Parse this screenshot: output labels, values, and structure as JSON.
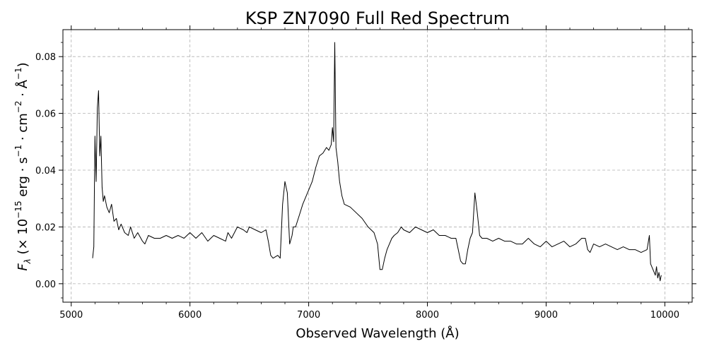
{
  "chart_data": {
    "type": "line",
    "title": "KSP ZN7090 Full Red Spectrum",
    "xlabel": "Observed Wavelength (Å)",
    "ylabel_parts": {
      "f": "F",
      "lam": "λ",
      "a": " (× 10",
      "e1": "−15",
      "b": " erg · s",
      "e2": "−1",
      "c": " · cm",
      "e3": "−2",
      "d": " · Å",
      "e4": "−1",
      "end": ")"
    },
    "xlim": [
      4930,
      10230
    ],
    "ylim": [
      -0.0065,
      0.0895
    ],
    "x_ticks": [
      5000,
      6000,
      7000,
      8000,
      9000,
      10000
    ],
    "x_tick_labels": [
      "5000",
      "6000",
      "7000",
      "8000",
      "9000",
      "10000"
    ],
    "y_ticks": [
      0.0,
      0.02,
      0.04,
      0.06,
      0.08
    ],
    "y_tick_labels": [
      "0.00",
      "0.02",
      "0.04",
      "0.06",
      "0.08"
    ],
    "x_minor_step": 200,
    "y_minor_step": 0.005,
    "grid": true,
    "series": [
      {
        "color": "#000000",
        "x": [
          5180,
          5190,
          5200,
          5210,
          5220,
          5230,
          5240,
          5250,
          5260,
          5270,
          5280,
          5300,
          5320,
          5340,
          5360,
          5380,
          5400,
          5420,
          5450,
          5480,
          5500,
          5530,
          5560,
          5600,
          5620,
          5650,
          5700,
          5750,
          5800,
          5850,
          5900,
          5950,
          6000,
          6050,
          6100,
          6150,
          6200,
          6250,
          6300,
          6320,
          6350,
          6400,
          6450,
          6480,
          6500,
          6550,
          6600,
          6640,
          6660,
          6680,
          6700,
          6740,
          6760,
          6780,
          6800,
          6820,
          6840,
          6860,
          6870,
          6890,
          6920,
          6950,
          7000,
          7030,
          7060,
          7090,
          7120,
          7150,
          7170,
          7190,
          7200,
          7210,
          7220,
          7230,
          7245,
          7260,
          7280,
          7300,
          7350,
          7400,
          7450,
          7500,
          7550,
          7580,
          7600,
          7620,
          7640,
          7660,
          7680,
          7700,
          7720,
          7750,
          7780,
          7800,
          7850,
          7900,
          7950,
          8000,
          8050,
          8100,
          8150,
          8200,
          8240,
          8260,
          8280,
          8300,
          8320,
          8340,
          8360,
          8380,
          8400,
          8420,
          8440,
          8460,
          8500,
          8550,
          8600,
          8650,
          8700,
          8750,
          8800,
          8850,
          8900,
          8950,
          9000,
          9050,
          9100,
          9150,
          9200,
          9250,
          9300,
          9330,
          9350,
          9370,
          9400,
          9450,
          9500,
          9550,
          9600,
          9650,
          9700,
          9750,
          9800,
          9850,
          9870,
          9880,
          9890,
          9900,
          9910,
          9920,
          9930,
          9940,
          9950,
          9960,
          9970
        ],
        "y": [
          0.009,
          0.013,
          0.052,
          0.036,
          0.062,
          0.068,
          0.045,
          0.052,
          0.034,
          0.029,
          0.031,
          0.027,
          0.025,
          0.028,
          0.022,
          0.023,
          0.019,
          0.021,
          0.018,
          0.017,
          0.02,
          0.016,
          0.018,
          0.015,
          0.014,
          0.017,
          0.016,
          0.016,
          0.017,
          0.016,
          0.017,
          0.016,
          0.018,
          0.016,
          0.018,
          0.015,
          0.017,
          0.016,
          0.015,
          0.018,
          0.016,
          0.02,
          0.019,
          0.018,
          0.02,
          0.019,
          0.018,
          0.019,
          0.015,
          0.01,
          0.009,
          0.01,
          0.009,
          0.028,
          0.036,
          0.032,
          0.014,
          0.017,
          0.02,
          0.02,
          0.024,
          0.028,
          0.033,
          0.036,
          0.041,
          0.045,
          0.046,
          0.048,
          0.047,
          0.049,
          0.055,
          0.05,
          0.085,
          0.048,
          0.043,
          0.036,
          0.031,
          0.028,
          0.027,
          0.025,
          0.023,
          0.02,
          0.018,
          0.014,
          0.005,
          0.005,
          0.009,
          0.012,
          0.014,
          0.016,
          0.017,
          0.018,
          0.02,
          0.019,
          0.018,
          0.02,
          0.019,
          0.018,
          0.019,
          0.017,
          0.017,
          0.016,
          0.016,
          0.012,
          0.008,
          0.007,
          0.007,
          0.012,
          0.016,
          0.018,
          0.032,
          0.025,
          0.017,
          0.016,
          0.016,
          0.015,
          0.016,
          0.015,
          0.015,
          0.014,
          0.014,
          0.016,
          0.014,
          0.013,
          0.015,
          0.013,
          0.014,
          0.015,
          0.013,
          0.014,
          0.016,
          0.016,
          0.012,
          0.011,
          0.014,
          0.013,
          0.014,
          0.013,
          0.012,
          0.013,
          0.012,
          0.012,
          0.011,
          0.012,
          0.017,
          0.007,
          0.006,
          0.005,
          0.004,
          0.003,
          0.006,
          0.002,
          0.004,
          0.001,
          0.003
        ]
      }
    ]
  }
}
